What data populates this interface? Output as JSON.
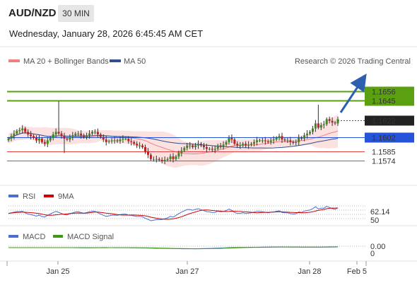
{
  "header": {
    "symbol": "AUD/NZD",
    "timeframe": "30 MIN",
    "datetime": "Wednesday, January 28, 2026 6:45:45 AM CET"
  },
  "legend": {
    "ma20_label": "MA 20 + Bollinger Bands",
    "ma50_label": "MA 50",
    "ma20_color": "#f08080",
    "ma50_color": "#2f4f8f",
    "copyright": "Research © 2026 Trading Central"
  },
  "chart_data": [
    {
      "type": "candlestick",
      "panel": "price",
      "x_tick_labels": [
        "Jan 25",
        "Jan 27",
        "Jan 28",
        "Feb 5"
      ],
      "y_range": [
        1.1545,
        1.168
      ],
      "price_levels": [
        {
          "label": "1.1656",
          "value": 1.1656,
          "style": "resistance",
          "color": "#5aa011"
        },
        {
          "label": "1.1645",
          "value": 1.1645,
          "style": "resistance",
          "color": "#5aa011"
        },
        {
          "label": "1.1622",
          "value": 1.1622,
          "style": "current",
          "color": "#333333"
        },
        {
          "label": "1.1602",
          "value": 1.1602,
          "style": "pivot",
          "color": "#2554d8"
        },
        {
          "label": "1.1585",
          "value": 1.1585,
          "style": "support",
          "color": "#e04040"
        },
        {
          "label": "1.1574",
          "value": 1.1574,
          "style": "support",
          "color": "#e04040"
        }
      ],
      "close": [
        1.16,
        1.1603,
        1.1606,
        1.1609,
        1.161,
        1.1612,
        1.1608,
        1.1605,
        1.1603,
        1.1601,
        1.1598,
        1.16,
        1.1596,
        1.1594,
        1.1598,
        1.1601,
        1.1605,
        1.1608,
        1.1606,
        1.1603,
        1.16,
        1.1599,
        1.1602,
        1.1604,
        1.1606,
        1.1606,
        1.1604,
        1.1602,
        1.1604,
        1.1606,
        1.1608,
        1.1608,
        1.1605,
        1.1602,
        1.1599,
        1.1596,
        1.1597,
        1.1598,
        1.1598,
        1.1597,
        1.1599,
        1.16,
        1.16,
        1.1597,
        1.1596,
        1.1594,
        1.1592,
        1.1592,
        1.159,
        1.1585,
        1.1581,
        1.1576,
        1.1576,
        1.1576,
        1.1575,
        1.1574,
        1.1575,
        1.1576,
        1.1579,
        1.1576,
        1.1579,
        1.1583,
        1.1586,
        1.1589,
        1.1592,
        1.1592,
        1.159,
        1.1592,
        1.1594,
        1.1592,
        1.159,
        1.1588,
        1.1588,
        1.1587,
        1.1588,
        1.1592,
        1.1591,
        1.1593,
        1.1596,
        1.1601,
        1.1599,
        1.1594,
        1.1592,
        1.1592,
        1.1594,
        1.1592,
        1.1593,
        1.1594,
        1.1596,
        1.1598,
        1.1598,
        1.1598,
        1.1597,
        1.1596,
        1.1598,
        1.1599,
        1.1601,
        1.1603,
        1.1599,
        1.1598,
        1.1598,
        1.1596,
        1.1595,
        1.1596,
        1.1601,
        1.16,
        1.1604,
        1.1606,
        1.1608,
        1.1612,
        1.1618,
        1.1613,
        1.1616,
        1.1617,
        1.1623,
        1.1621,
        1.1619,
        1.1618,
        1.1623
      ],
      "annotations": [
        "projected upward arrow from 1.1622 toward 1.1656"
      ]
    },
    {
      "type": "line",
      "panel": "rsi",
      "series": [
        {
          "name": "RSI",
          "color": "#4a6fd4"
        },
        {
          "name": "9MA",
          "color": "#d00000"
        }
      ],
      "y_tick_labels": [
        "62.14",
        "50"
      ],
      "current_value": 62.14
    },
    {
      "type": "line",
      "panel": "macd",
      "series": [
        {
          "name": "MACD",
          "color": "#4a6fd4"
        },
        {
          "name": "MACD Signal",
          "color": "#3c9a10"
        }
      ],
      "y_tick_labels": [
        "0.00",
        "0"
      ],
      "current_value": 0.0
    }
  ],
  "rsi_legend": {
    "rsi_label": "RSI",
    "ma9_label": "9MA"
  },
  "macd_legend": {
    "macd_label": "MACD",
    "signal_label": "MACD Signal"
  }
}
